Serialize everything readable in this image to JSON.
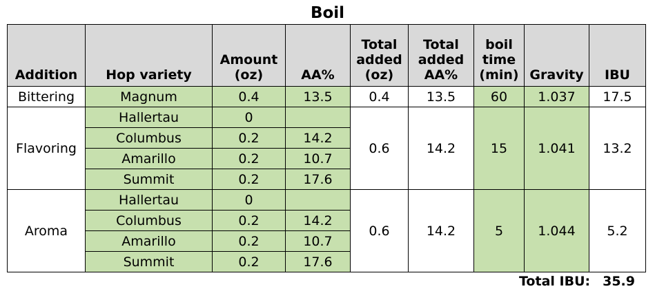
{
  "title": "Boil",
  "headers": {
    "addition": "Addition",
    "hop_variety": "Hop variety",
    "amount": "Amount (oz)",
    "aa": "AA%",
    "total_added": "Total added (oz)",
    "total_aa": "Total added AA%",
    "boil_time": "boil time (min)",
    "gravity": "Gravity",
    "ibu": "IBU"
  },
  "groups": [
    {
      "addition": "Bittering",
      "total_added": "0.4",
      "total_aa": "13.5",
      "boil_time": "60",
      "gravity": "1.037",
      "ibu": "17.5",
      "hops": [
        {
          "variety": "Magnum",
          "amount": "0.4",
          "aa": "13.5"
        }
      ]
    },
    {
      "addition": "Flavoring",
      "total_added": "0.6",
      "total_aa": "14.2",
      "boil_time": "15",
      "gravity": "1.041",
      "ibu": "13.2",
      "hops": [
        {
          "variety": "Hallertau",
          "amount": "0",
          "aa": ""
        },
        {
          "variety": "Columbus",
          "amount": "0.2",
          "aa": "14.2"
        },
        {
          "variety": "Amarillo",
          "amount": "0.2",
          "aa": "10.7"
        },
        {
          "variety": "Summit",
          "amount": "0.2",
          "aa": "17.6"
        }
      ]
    },
    {
      "addition": "Aroma",
      "total_added": "0.6",
      "total_aa": "14.2",
      "boil_time": "5",
      "gravity": "1.044",
      "ibu": "5.2",
      "hops": [
        {
          "variety": "Hallertau",
          "amount": "0",
          "aa": ""
        },
        {
          "variety": "Columbus",
          "amount": "0.2",
          "aa": "14.2"
        },
        {
          "variety": "Amarillo",
          "amount": "0.2",
          "aa": "10.7"
        },
        {
          "variety": "Summit",
          "amount": "0.2",
          "aa": "17.6"
        }
      ]
    }
  ],
  "total_ibu_label": "Total IBU:",
  "total_ibu_value": "35.9",
  "colors": {
    "header_bg": "#d9d9d9",
    "input_cell_bg": "#c7e0ae",
    "border": "#000000"
  }
}
